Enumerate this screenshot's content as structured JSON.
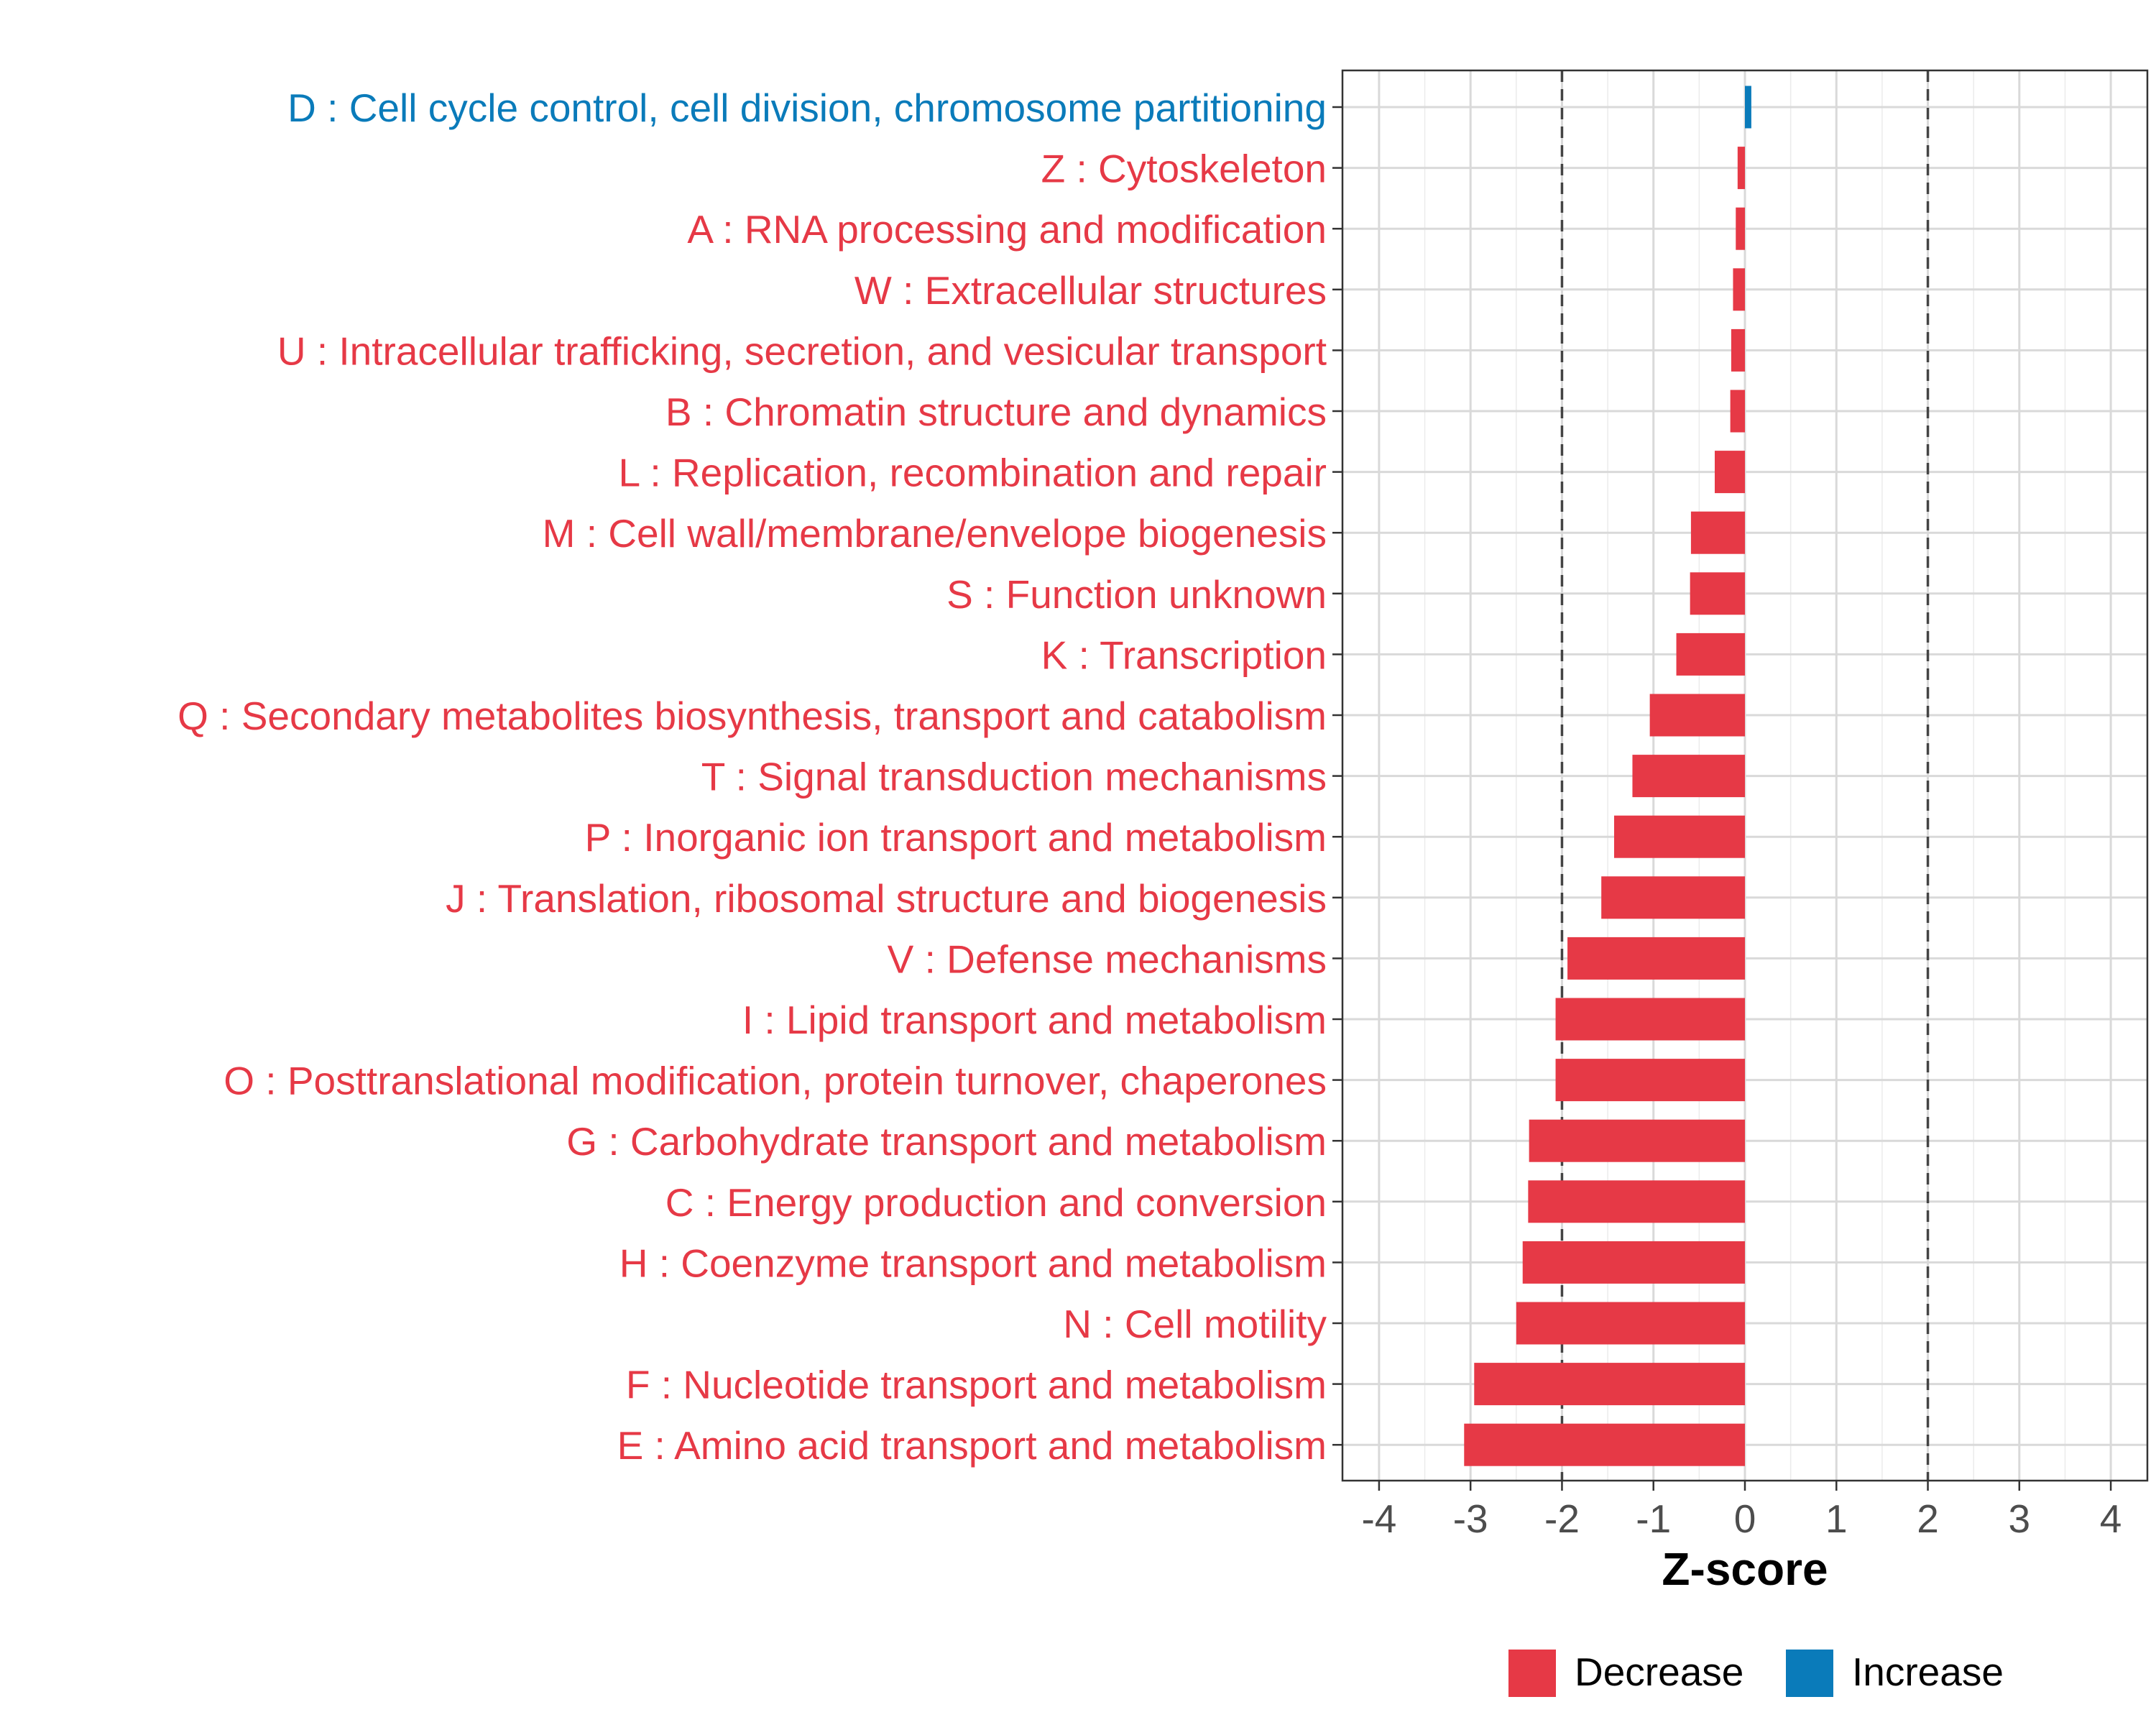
{
  "chart_data": {
    "type": "bar",
    "orientation": "horizontal",
    "title": "",
    "xlabel": "Z-score",
    "ylabel": "",
    "xlim": [
      -4.4,
      4.4
    ],
    "xticks": [
      -4,
      -3,
      -2,
      -1,
      0,
      1,
      2,
      3,
      4
    ],
    "xtick_labels": [
      "-4",
      "-3",
      "-2",
      "-1",
      "0",
      "1",
      "2",
      "3",
      "4"
    ],
    "reference_lines": [
      -2,
      2
    ],
    "grid": true,
    "legend": {
      "position": "bottom",
      "entries": [
        {
          "name": "Decrease",
          "color": "#E63946"
        },
        {
          "name": "Increase",
          "color": "#0A7BBA"
        }
      ]
    },
    "categories": [
      "D : Cell cycle control, cell division, chromosome partitioning",
      "Z : Cytoskeleton",
      "A : RNA processing and modification",
      "W : Extracellular structures",
      "U : Intracellular trafficking, secretion, and vesicular transport",
      "B : Chromatin structure and dynamics",
      "L : Replication, recombination and repair",
      "M : Cell wall/membrane/envelope biogenesis",
      "S : Function unknown",
      "K : Transcription",
      "Q : Secondary metabolites biosynthesis, transport and catabolism",
      "T : Signal transduction mechanisms",
      "P : Inorganic ion transport and metabolism",
      "J : Translation, ribosomal structure and biogenesis",
      "V : Defense mechanisms",
      "I : Lipid transport and metabolism",
      "O : Posttranslational modification, protein turnover, chaperones",
      "G : Carbohydrate transport and metabolism",
      "C : Energy production and conversion",
      "H : Coenzyme transport and metabolism",
      "N : Cell motility",
      "F : Nucleotide transport and metabolism",
      "E : Amino acid transport and metabolism"
    ],
    "values": [
      0.07,
      -0.08,
      -0.1,
      -0.13,
      -0.15,
      -0.16,
      -0.33,
      -0.59,
      -0.6,
      -0.75,
      -1.04,
      -1.23,
      -1.43,
      -1.57,
      -1.94,
      -2.07,
      -2.07,
      -2.36,
      -2.37,
      -2.43,
      -2.5,
      -2.96,
      -3.07
    ],
    "direction": [
      "Increase",
      "Decrease",
      "Decrease",
      "Decrease",
      "Decrease",
      "Decrease",
      "Decrease",
      "Decrease",
      "Decrease",
      "Decrease",
      "Decrease",
      "Decrease",
      "Decrease",
      "Decrease",
      "Decrease",
      "Decrease",
      "Decrease",
      "Decrease",
      "Decrease",
      "Decrease",
      "Decrease",
      "Decrease",
      "Decrease"
    ]
  }
}
